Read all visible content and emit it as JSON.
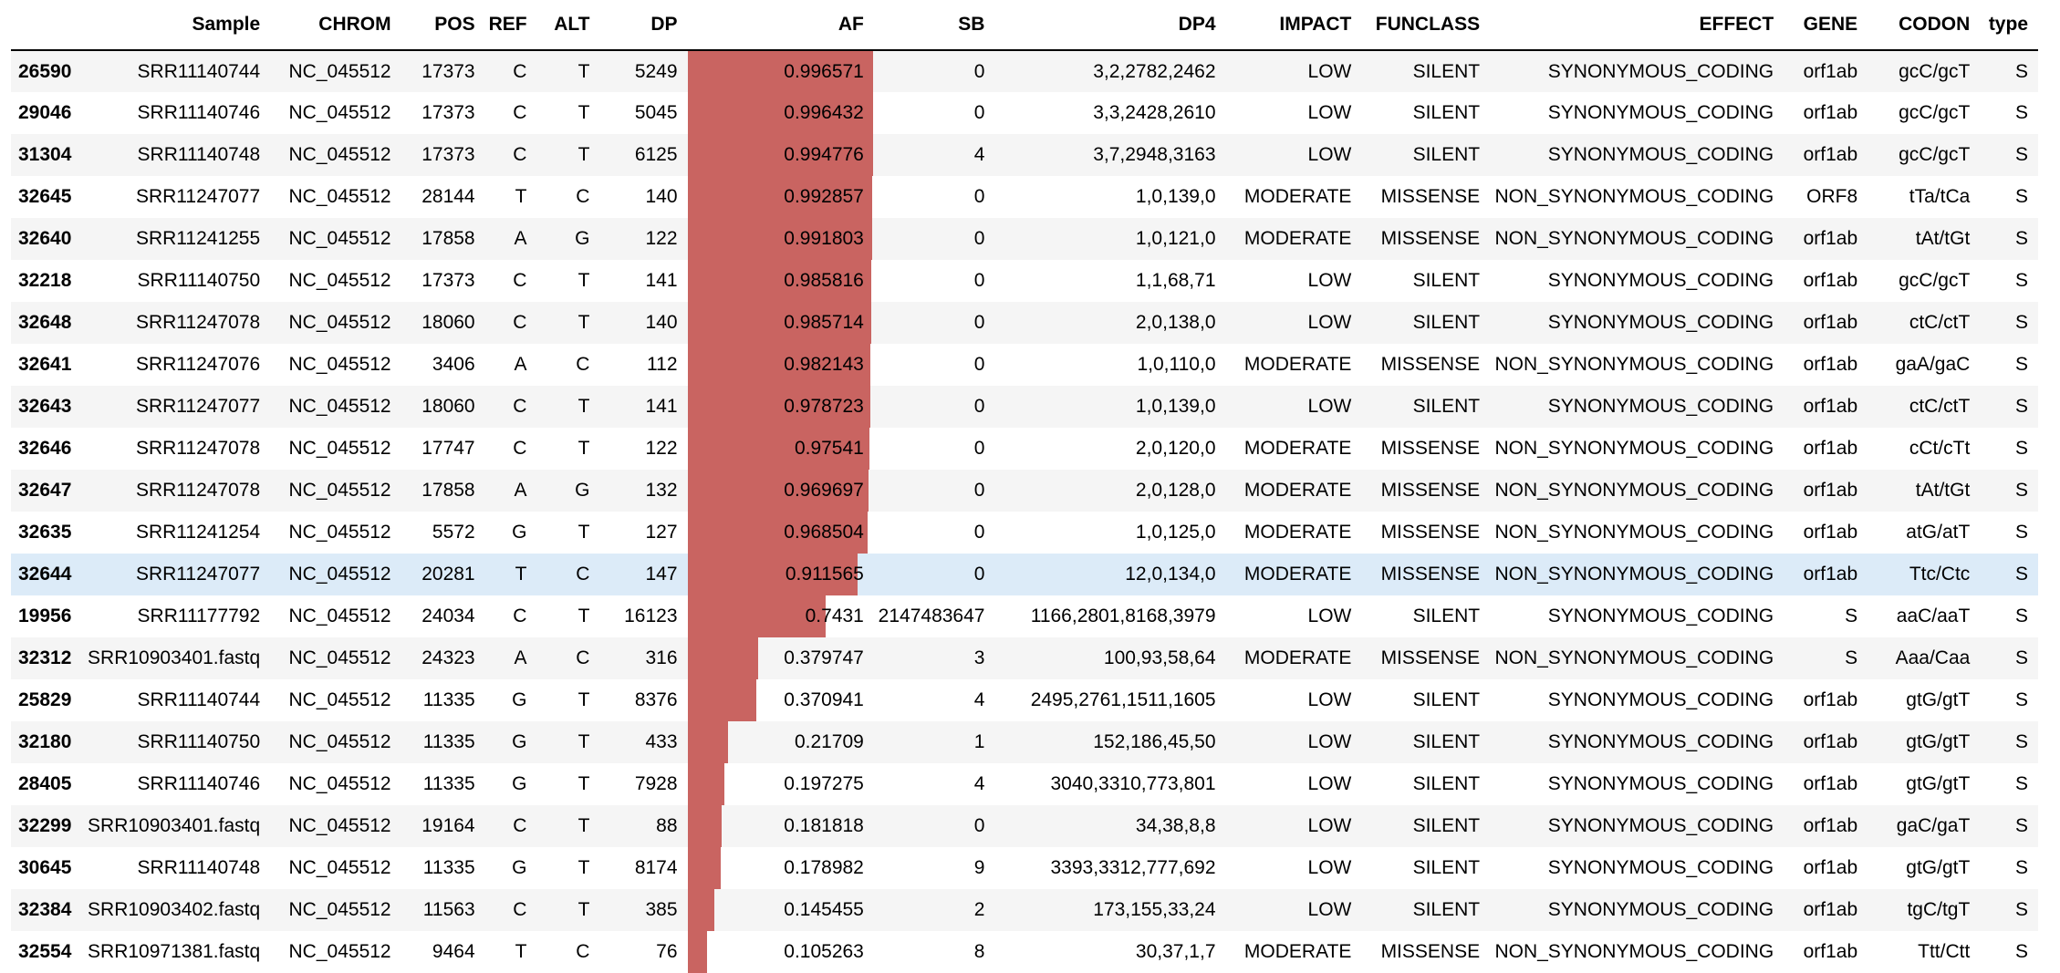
{
  "columns": [
    {
      "key": "idx",
      "label": ""
    },
    {
      "key": "Sample",
      "label": "Sample"
    },
    {
      "key": "CHROM",
      "label": "CHROM"
    },
    {
      "key": "POS",
      "label": "POS"
    },
    {
      "key": "REF",
      "label": "REF"
    },
    {
      "key": "ALT",
      "label": "ALT"
    },
    {
      "key": "DP",
      "label": "DP"
    },
    {
      "key": "AF",
      "label": "AF"
    },
    {
      "key": "SB",
      "label": "SB"
    },
    {
      "key": "DP4",
      "label": "DP4"
    },
    {
      "key": "IMPACT",
      "label": "IMPACT"
    },
    {
      "key": "FUNCLASS",
      "label": "FUNCLASS"
    },
    {
      "key": "EFFECT",
      "label": "EFFECT"
    },
    {
      "key": "GENE",
      "label": "GENE"
    },
    {
      "key": "CODON",
      "label": "CODON"
    },
    {
      "key": "type",
      "label": "type"
    }
  ],
  "bar_color": "#c96461",
  "highlight_color": "#dcebf8",
  "highlighted_row_index": 12,
  "rows": [
    {
      "idx": "26590",
      "Sample": "SRR11140744",
      "CHROM": "NC_045512",
      "POS": "17373",
      "REF": "C",
      "ALT": "T",
      "DP": "5249",
      "AF": "0.996571",
      "SB": "0",
      "DP4": "3,2,2782,2462",
      "IMPACT": "LOW",
      "FUNCLASS": "SILENT",
      "EFFECT": "SYNONYMOUS_CODING",
      "GENE": "orf1ab",
      "CODON": "gcC/gcT",
      "type": "S"
    },
    {
      "idx": "29046",
      "Sample": "SRR11140746",
      "CHROM": "NC_045512",
      "POS": "17373",
      "REF": "C",
      "ALT": "T",
      "DP": "5045",
      "AF": "0.996432",
      "SB": "0",
      "DP4": "3,3,2428,2610",
      "IMPACT": "LOW",
      "FUNCLASS": "SILENT",
      "EFFECT": "SYNONYMOUS_CODING",
      "GENE": "orf1ab",
      "CODON": "gcC/gcT",
      "type": "S"
    },
    {
      "idx": "31304",
      "Sample": "SRR11140748",
      "CHROM": "NC_045512",
      "POS": "17373",
      "REF": "C",
      "ALT": "T",
      "DP": "6125",
      "AF": "0.994776",
      "SB": "4",
      "DP4": "3,7,2948,3163",
      "IMPACT": "LOW",
      "FUNCLASS": "SILENT",
      "EFFECT": "SYNONYMOUS_CODING",
      "GENE": "orf1ab",
      "CODON": "gcC/gcT",
      "type": "S"
    },
    {
      "idx": "32645",
      "Sample": "SRR11247077",
      "CHROM": "NC_045512",
      "POS": "28144",
      "REF": "T",
      "ALT": "C",
      "DP": "140",
      "AF": "0.992857",
      "SB": "0",
      "DP4": "1,0,139,0",
      "IMPACT": "MODERATE",
      "FUNCLASS": "MISSENSE",
      "EFFECT": "NON_SYNONYMOUS_CODING",
      "GENE": "ORF8",
      "CODON": "tTa/tCa",
      "type": "S"
    },
    {
      "idx": "32640",
      "Sample": "SRR11241255",
      "CHROM": "NC_045512",
      "POS": "17858",
      "REF": "A",
      "ALT": "G",
      "DP": "122",
      "AF": "0.991803",
      "SB": "0",
      "DP4": "1,0,121,0",
      "IMPACT": "MODERATE",
      "FUNCLASS": "MISSENSE",
      "EFFECT": "NON_SYNONYMOUS_CODING",
      "GENE": "orf1ab",
      "CODON": "tAt/tGt",
      "type": "S"
    },
    {
      "idx": "32218",
      "Sample": "SRR11140750",
      "CHROM": "NC_045512",
      "POS": "17373",
      "REF": "C",
      "ALT": "T",
      "DP": "141",
      "AF": "0.985816",
      "SB": "0",
      "DP4": "1,1,68,71",
      "IMPACT": "LOW",
      "FUNCLASS": "SILENT",
      "EFFECT": "SYNONYMOUS_CODING",
      "GENE": "orf1ab",
      "CODON": "gcC/gcT",
      "type": "S"
    },
    {
      "idx": "32648",
      "Sample": "SRR11247078",
      "CHROM": "NC_045512",
      "POS": "18060",
      "REF": "C",
      "ALT": "T",
      "DP": "140",
      "AF": "0.985714",
      "SB": "0",
      "DP4": "2,0,138,0",
      "IMPACT": "LOW",
      "FUNCLASS": "SILENT",
      "EFFECT": "SYNONYMOUS_CODING",
      "GENE": "orf1ab",
      "CODON": "ctC/ctT",
      "type": "S"
    },
    {
      "idx": "32641",
      "Sample": "SRR11247076",
      "CHROM": "NC_045512",
      "POS": "3406",
      "REF": "A",
      "ALT": "C",
      "DP": "112",
      "AF": "0.982143",
      "SB": "0",
      "DP4": "1,0,110,0",
      "IMPACT": "MODERATE",
      "FUNCLASS": "MISSENSE",
      "EFFECT": "NON_SYNONYMOUS_CODING",
      "GENE": "orf1ab",
      "CODON": "gaA/gaC",
      "type": "S"
    },
    {
      "idx": "32643",
      "Sample": "SRR11247077",
      "CHROM": "NC_045512",
      "POS": "18060",
      "REF": "C",
      "ALT": "T",
      "DP": "141",
      "AF": "0.978723",
      "SB": "0",
      "DP4": "1,0,139,0",
      "IMPACT": "LOW",
      "FUNCLASS": "SILENT",
      "EFFECT": "SYNONYMOUS_CODING",
      "GENE": "orf1ab",
      "CODON": "ctC/ctT",
      "type": "S"
    },
    {
      "idx": "32646",
      "Sample": "SRR11247078",
      "CHROM": "NC_045512",
      "POS": "17747",
      "REF": "C",
      "ALT": "T",
      "DP": "122",
      "AF": "0.97541",
      "SB": "0",
      "DP4": "2,0,120,0",
      "IMPACT": "MODERATE",
      "FUNCLASS": "MISSENSE",
      "EFFECT": "NON_SYNONYMOUS_CODING",
      "GENE": "orf1ab",
      "CODON": "cCt/cTt",
      "type": "S"
    },
    {
      "idx": "32647",
      "Sample": "SRR11247078",
      "CHROM": "NC_045512",
      "POS": "17858",
      "REF": "A",
      "ALT": "G",
      "DP": "132",
      "AF": "0.969697",
      "SB": "0",
      "DP4": "2,0,128,0",
      "IMPACT": "MODERATE",
      "FUNCLASS": "MISSENSE",
      "EFFECT": "NON_SYNONYMOUS_CODING",
      "GENE": "orf1ab",
      "CODON": "tAt/tGt",
      "type": "S"
    },
    {
      "idx": "32635",
      "Sample": "SRR11241254",
      "CHROM": "NC_045512",
      "POS": "5572",
      "REF": "G",
      "ALT": "T",
      "DP": "127",
      "AF": "0.968504",
      "SB": "0",
      "DP4": "1,0,125,0",
      "IMPACT": "MODERATE",
      "FUNCLASS": "MISSENSE",
      "EFFECT": "NON_SYNONYMOUS_CODING",
      "GENE": "orf1ab",
      "CODON": "atG/atT",
      "type": "S"
    },
    {
      "idx": "32644",
      "Sample": "SRR11247077",
      "CHROM": "NC_045512",
      "POS": "20281",
      "REF": "T",
      "ALT": "C",
      "DP": "147",
      "AF": "0.911565",
      "SB": "0",
      "DP4": "12,0,134,0",
      "IMPACT": "MODERATE",
      "FUNCLASS": "MISSENSE",
      "EFFECT": "NON_SYNONYMOUS_CODING",
      "GENE": "orf1ab",
      "CODON": "Ttc/Ctc",
      "type": "S"
    },
    {
      "idx": "19956",
      "Sample": "SRR11177792",
      "CHROM": "NC_045512",
      "POS": "24034",
      "REF": "C",
      "ALT": "T",
      "DP": "16123",
      "AF": "0.7431",
      "SB": "2147483647",
      "DP4": "1166,2801,8168,3979",
      "IMPACT": "LOW",
      "FUNCLASS": "SILENT",
      "EFFECT": "SYNONYMOUS_CODING",
      "GENE": "S",
      "CODON": "aaC/aaT",
      "type": "S"
    },
    {
      "idx": "32312",
      "Sample": "SRR10903401.fastq",
      "CHROM": "NC_045512",
      "POS": "24323",
      "REF": "A",
      "ALT": "C",
      "DP": "316",
      "AF": "0.379747",
      "SB": "3",
      "DP4": "100,93,58,64",
      "IMPACT": "MODERATE",
      "FUNCLASS": "MISSENSE",
      "EFFECT": "NON_SYNONYMOUS_CODING",
      "GENE": "S",
      "CODON": "Aaa/Caa",
      "type": "S"
    },
    {
      "idx": "25829",
      "Sample": "SRR11140744",
      "CHROM": "NC_045512",
      "POS": "11335",
      "REF": "G",
      "ALT": "T",
      "DP": "8376",
      "AF": "0.370941",
      "SB": "4",
      "DP4": "2495,2761,1511,1605",
      "IMPACT": "LOW",
      "FUNCLASS": "SILENT",
      "EFFECT": "SYNONYMOUS_CODING",
      "GENE": "orf1ab",
      "CODON": "gtG/gtT",
      "type": "S"
    },
    {
      "idx": "32180",
      "Sample": "SRR11140750",
      "CHROM": "NC_045512",
      "POS": "11335",
      "REF": "G",
      "ALT": "T",
      "DP": "433",
      "AF": "0.21709",
      "SB": "1",
      "DP4": "152,186,45,50",
      "IMPACT": "LOW",
      "FUNCLASS": "SILENT",
      "EFFECT": "SYNONYMOUS_CODING",
      "GENE": "orf1ab",
      "CODON": "gtG/gtT",
      "type": "S"
    },
    {
      "idx": "28405",
      "Sample": "SRR11140746",
      "CHROM": "NC_045512",
      "POS": "11335",
      "REF": "G",
      "ALT": "T",
      "DP": "7928",
      "AF": "0.197275",
      "SB": "4",
      "DP4": "3040,3310,773,801",
      "IMPACT": "LOW",
      "FUNCLASS": "SILENT",
      "EFFECT": "SYNONYMOUS_CODING",
      "GENE": "orf1ab",
      "CODON": "gtG/gtT",
      "type": "S"
    },
    {
      "idx": "32299",
      "Sample": "SRR10903401.fastq",
      "CHROM": "NC_045512",
      "POS": "19164",
      "REF": "C",
      "ALT": "T",
      "DP": "88",
      "AF": "0.181818",
      "SB": "0",
      "DP4": "34,38,8,8",
      "IMPACT": "LOW",
      "FUNCLASS": "SILENT",
      "EFFECT": "SYNONYMOUS_CODING",
      "GENE": "orf1ab",
      "CODON": "gaC/gaT",
      "type": "S"
    },
    {
      "idx": "30645",
      "Sample": "SRR11140748",
      "CHROM": "NC_045512",
      "POS": "11335",
      "REF": "G",
      "ALT": "T",
      "DP": "8174",
      "AF": "0.178982",
      "SB": "9",
      "DP4": "3393,3312,777,692",
      "IMPACT": "LOW",
      "FUNCLASS": "SILENT",
      "EFFECT": "SYNONYMOUS_CODING",
      "GENE": "orf1ab",
      "CODON": "gtG/gtT",
      "type": "S"
    },
    {
      "idx": "32384",
      "Sample": "SRR10903402.fastq",
      "CHROM": "NC_045512",
      "POS": "11563",
      "REF": "C",
      "ALT": "T",
      "DP": "385",
      "AF": "0.145455",
      "SB": "2",
      "DP4": "173,155,33,24",
      "IMPACT": "LOW",
      "FUNCLASS": "SILENT",
      "EFFECT": "SYNONYMOUS_CODING",
      "GENE": "orf1ab",
      "CODON": "tgC/tgT",
      "type": "S"
    },
    {
      "idx": "32554",
      "Sample": "SRR10971381.fastq",
      "CHROM": "NC_045512",
      "POS": "9464",
      "REF": "T",
      "ALT": "C",
      "DP": "76",
      "AF": "0.105263",
      "SB": "8",
      "DP4": "30,37,1,7",
      "IMPACT": "MODERATE",
      "FUNCLASS": "MISSENSE",
      "EFFECT": "NON_SYNONYMOUS_CODING",
      "GENE": "orf1ab",
      "CODON": "Ttt/Ctt",
      "type": "S"
    }
  ]
}
